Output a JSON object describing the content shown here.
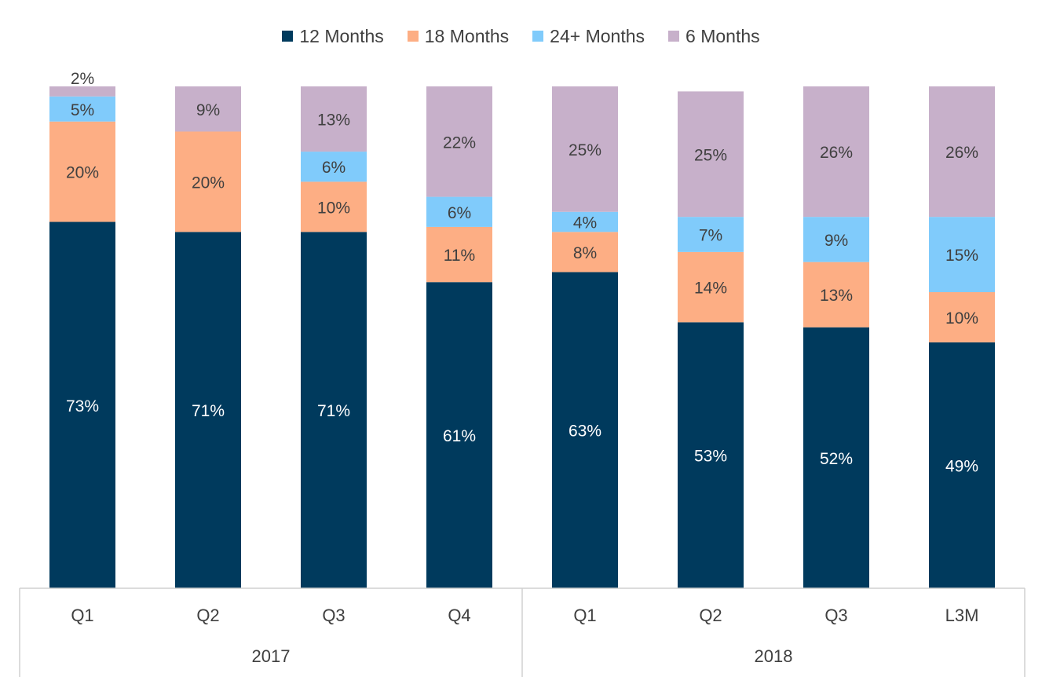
{
  "chart_data": {
    "type": "bar",
    "stacked": true,
    "legend_position": "top",
    "grid": false,
    "ylim": [
      0,
      100
    ],
    "categories": [
      "Q1",
      "Q2",
      "Q3",
      "Q4",
      "Q1",
      "Q2",
      "Q3",
      "L3M"
    ],
    "groups": [
      {
        "label": "2017",
        "count": 4
      },
      {
        "label": "2018",
        "count": 4
      }
    ],
    "series": [
      {
        "name": "12 Months",
        "color": "#003a5d",
        "label_color": "#ffffff",
        "values": [
          73,
          71,
          71,
          61,
          63,
          53,
          52,
          49
        ],
        "labels": [
          "73%",
          "71%",
          "71%",
          "61%",
          "63%",
          "53%",
          "52%",
          "49%"
        ]
      },
      {
        "name": "18 Months",
        "color": "#fdae84",
        "label_color": "#404040",
        "values": [
          20,
          20,
          10,
          11,
          8,
          14,
          13,
          10
        ],
        "labels": [
          "20%",
          "20%",
          "10%",
          "11%",
          "8%",
          "14%",
          "13%",
          "10%"
        ]
      },
      {
        "name": "24+ Months",
        "color": "#80cbfb",
        "label_color": "#404040",
        "values": [
          5,
          0,
          6,
          6,
          4,
          7,
          9,
          15
        ],
        "labels": [
          "5%",
          "",
          "6%",
          "6%",
          "4%",
          "7%",
          "9%",
          "15%"
        ]
      },
      {
        "name": "6 Months",
        "color": "#c7b0ca",
        "label_color": "#404040",
        "values": [
          2,
          9,
          13,
          22,
          25,
          25,
          26,
          26
        ],
        "labels": [
          "2%",
          "9%",
          "13%",
          "22%",
          "25%",
          "25%",
          "26%",
          "26%"
        ]
      }
    ],
    "legend_order": [
      "12 Months",
      "18 Months",
      "24+ Months",
      "6 Months"
    ]
  }
}
